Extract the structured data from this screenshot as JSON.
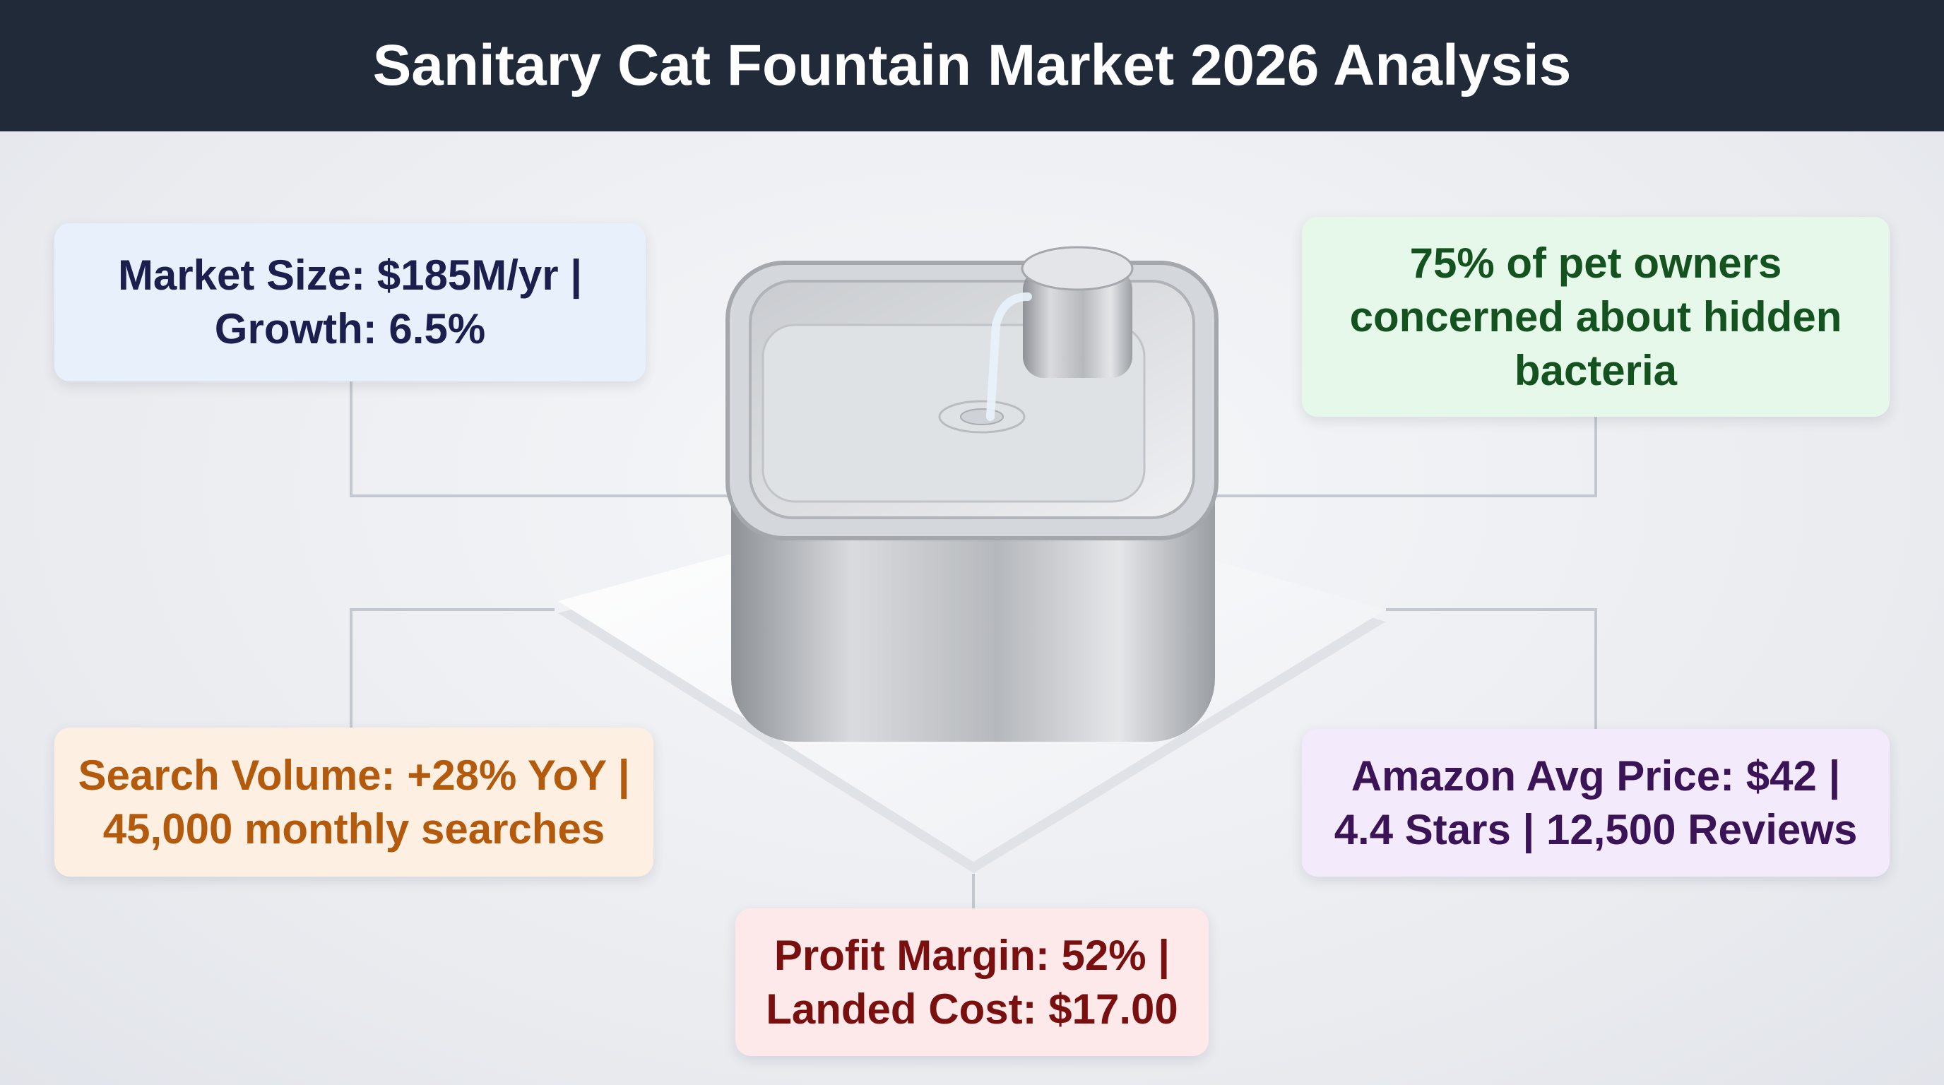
{
  "header": {
    "title": "Sanitary Cat Fountain Market 2026 Analysis"
  },
  "callouts": [
    {
      "lines": [
        "Market Size: $185M/yr |",
        "Growth: 6.5%"
      ]
    },
    {
      "lines": [
        "75% of pet owners",
        "concerned about hidden",
        "bacteria"
      ]
    },
    {
      "lines": [
        "Search Volume: +28% YoY |",
        "45,000 monthly searches"
      ]
    },
    {
      "lines": [
        "Amazon Avg Price: $42 |",
        "4.4 Stars | 12,500 Reviews"
      ]
    },
    {
      "lines": [
        "Profit Margin: 52% |",
        "Landed Cost: $17.00"
      ]
    }
  ]
}
